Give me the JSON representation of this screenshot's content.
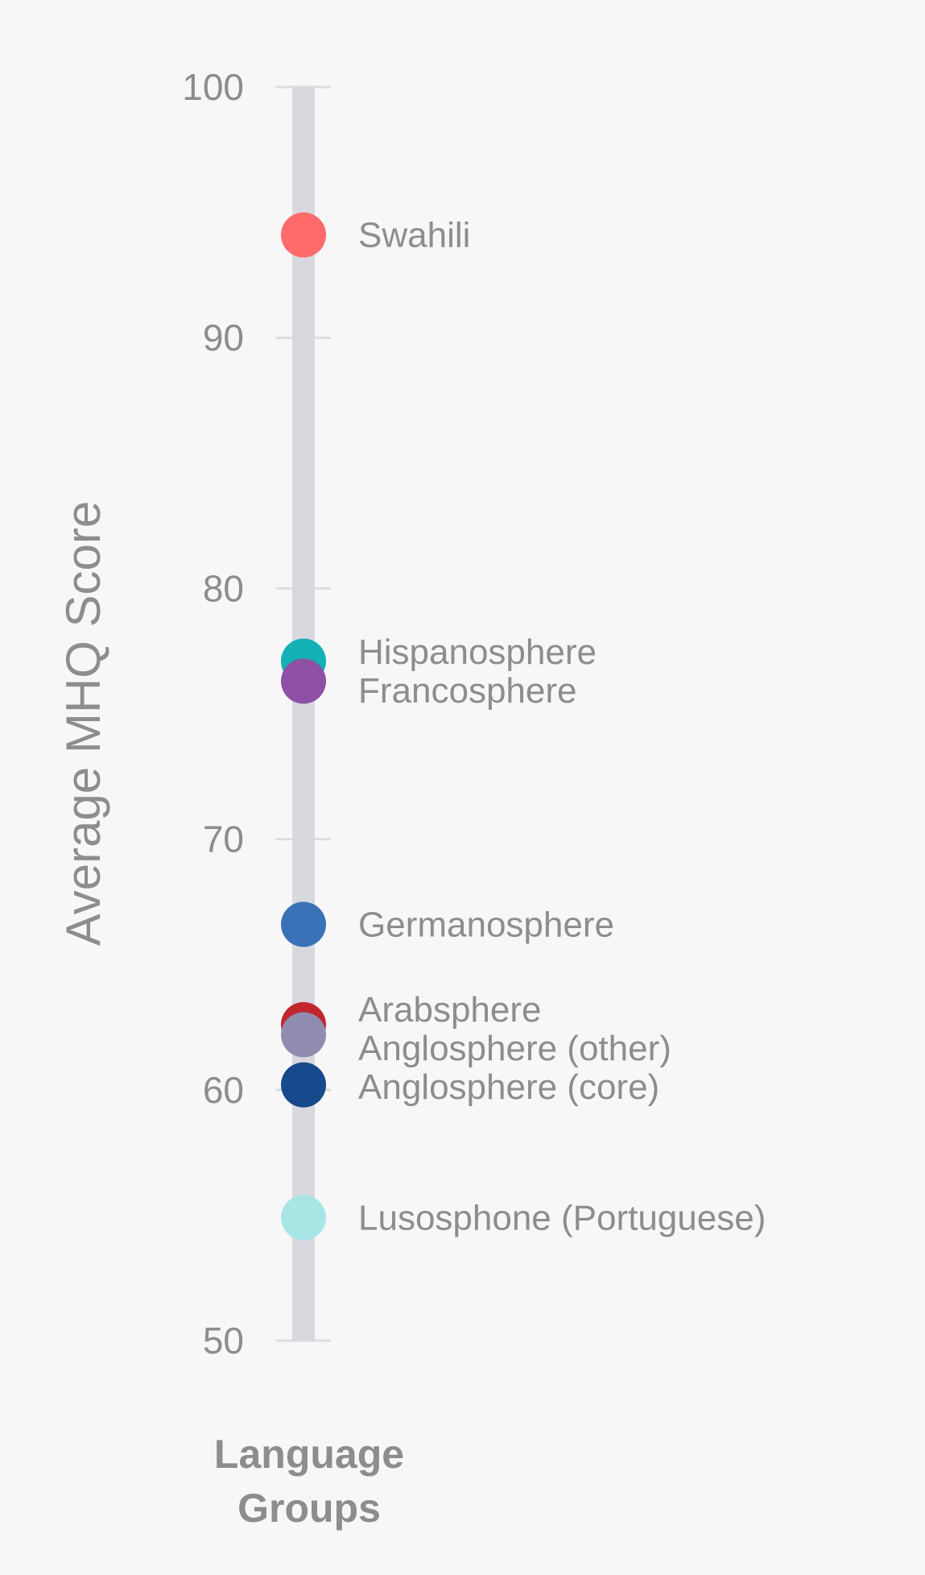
{
  "chart_data": {
    "type": "scatter",
    "orientation": "vertical-strip",
    "ylabel": "Average MHQ Score",
    "xlabel": "Language\nGroups",
    "ylim": [
      50,
      100
    ],
    "yticks": [
      50,
      60,
      70,
      80,
      90,
      100
    ],
    "grid": false,
    "series": [
      {
        "name": "Swahili",
        "value": 94.1,
        "color": "#ff6b6b"
      },
      {
        "name": "Hispanosphere",
        "value": 77.1,
        "color": "#13b0b5"
      },
      {
        "name": "Francosphere",
        "value": 76.3,
        "color": "#8e50a4"
      },
      {
        "name": "Germanosphere",
        "value": 66.6,
        "color": "#3a72b8"
      },
      {
        "name": "Arabsphere",
        "value": 62.6,
        "color": "#c1272d"
      },
      {
        "name": "Anglosphere (other)",
        "value": 62.2,
        "color": "#908cb0"
      },
      {
        "name": "Anglosphere (core)",
        "value": 60.2,
        "color": "#164a8c"
      },
      {
        "name": "Lusosphone (Portuguese)",
        "value": 54.9,
        "color": "#a8e6e6"
      }
    ],
    "colors": {
      "background": "#f7f7f8",
      "track": "#d8d8df",
      "tick": "#dcdcdc",
      "text": "#8d8d90",
      "label_text": "#8d8d90"
    }
  }
}
